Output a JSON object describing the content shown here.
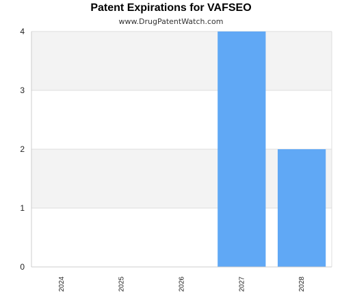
{
  "chart_data": {
    "type": "bar",
    "title": "Patent Expirations for VAFSEO",
    "subtitle": "www.DrugPatentWatch.com",
    "categories": [
      "2024",
      "2025",
      "2026",
      "2027",
      "2028"
    ],
    "values": [
      0,
      0,
      0,
      4,
      2
    ],
    "ylim": [
      0,
      4
    ],
    "yticks": [
      0,
      1,
      2,
      3,
      4
    ],
    "xlabel": "",
    "ylabel": "",
    "grid": true,
    "bar_color": "#60a8f5",
    "band_color": "#f3f3f3"
  }
}
